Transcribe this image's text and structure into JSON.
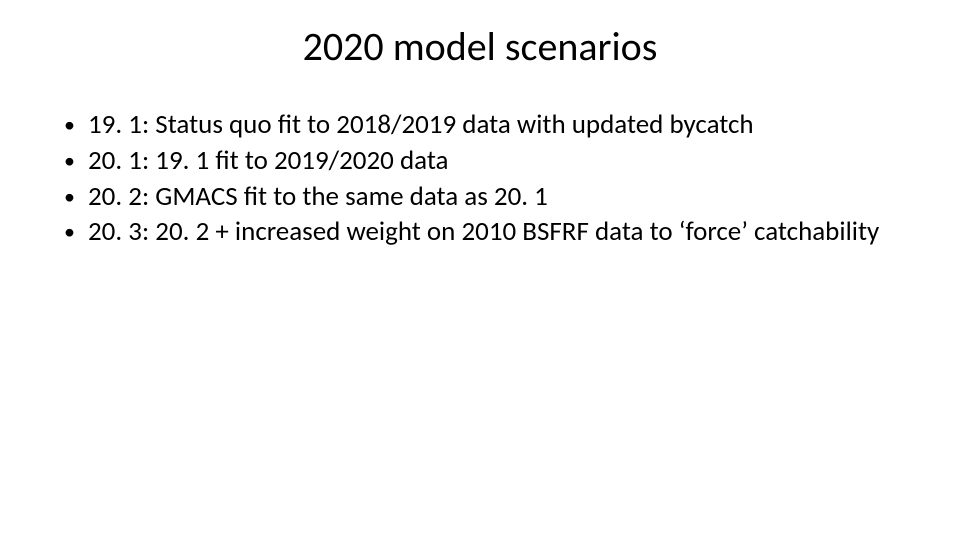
{
  "title": "2020 model scenarios",
  "bullets": [
    "19. 1: Status quo fit to 2018/2019 data with updated bycatch",
    "20. 1: 19. 1 fit to 2019/2020 data",
    "20. 2: GMACS fit to the same data as 20. 1",
    "20. 3: 20. 2 + increased weight on 2010 BSFRF data to ‘force’ catchability"
  ]
}
